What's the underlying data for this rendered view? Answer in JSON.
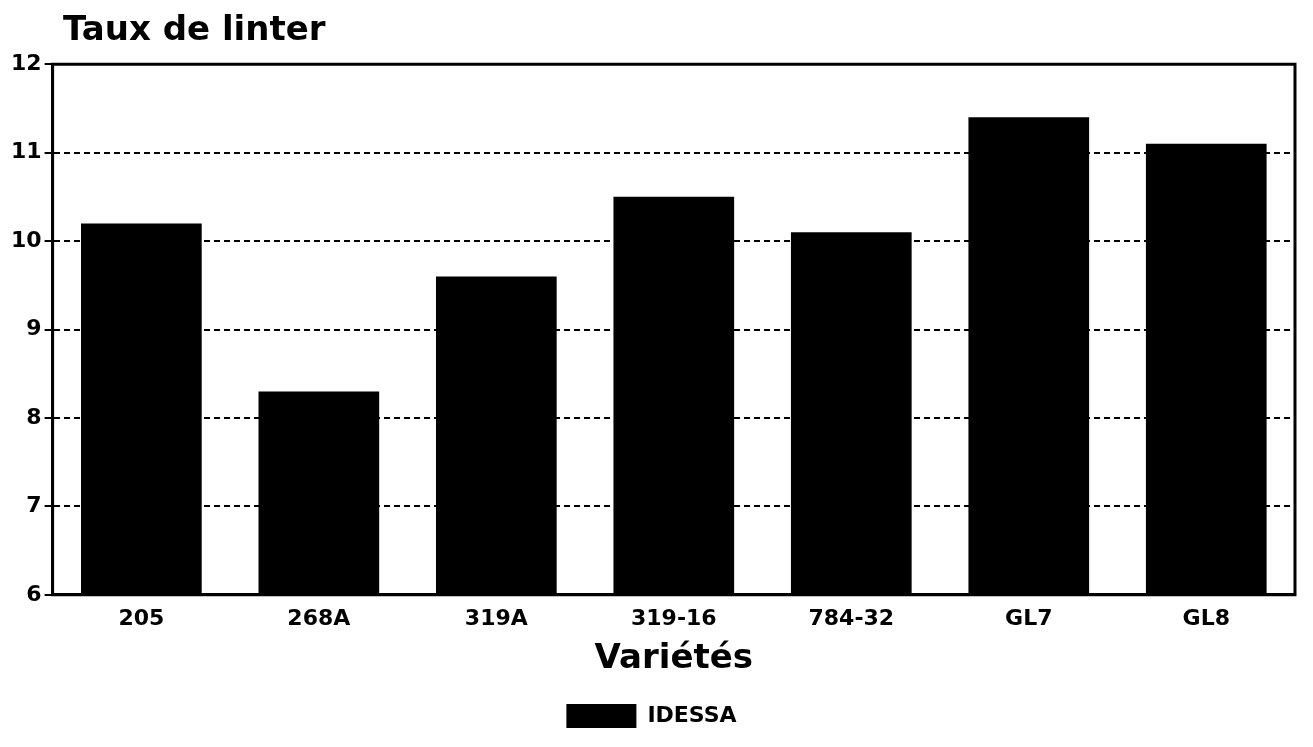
{
  "chart_data": {
    "type": "bar",
    "ylabel": "Taux de linter",
    "xlabel": "Variétés",
    "categories": [
      "205",
      "268A",
      "319A",
      "319-16",
      "784-32",
      "GL7",
      "GL8"
    ],
    "series": [
      {
        "name": "IDESSA",
        "color": "#000000",
        "values": [
          10.2,
          8.3,
          9.6,
          10.5,
          10.1,
          11.4,
          11.1
        ]
      }
    ],
    "ylim": [
      6,
      12
    ],
    "yticks": [
      6,
      7,
      8,
      9,
      10,
      11,
      12
    ],
    "grid": "y",
    "legend": "bottom"
  }
}
